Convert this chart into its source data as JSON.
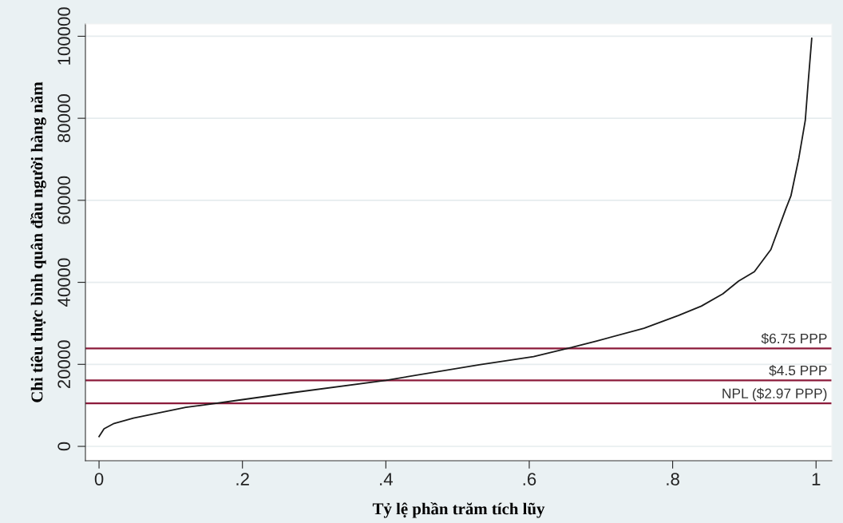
{
  "chart_data": {
    "type": "line",
    "xlabel": "Tỷ lệ phần trăm tích lũy",
    "ylabel": "Chi tiêu thực bình quân đầu người hàng năm",
    "series": [
      {
        "color": "#1a1a1a",
        "x": [
          0,
          0.007,
          0.021,
          0.048,
          0.121,
          0.188,
          0.27,
          0.4,
          0.53,
          0.606,
          0.659,
          0.694,
          0.76,
          0.808,
          0.84,
          0.87,
          0.892,
          0.914,
          0.937,
          0.958,
          0.965,
          0.976,
          0.985,
          0.989,
          0.994
        ],
        "values": [
          2400,
          4300,
          5600,
          6900,
          9500,
          11100,
          13100,
          16100,
          19900,
          21900,
          24100,
          25700,
          28800,
          31900,
          34200,
          37200,
          40300,
          42600,
          48000,
          58000,
          61100,
          70300,
          79500,
          88700,
          99500
        ]
      }
    ],
    "xlim": [
      -0.019,
      1.022
    ],
    "ylim": [
      -3500,
      103000
    ],
    "xticks": [
      0,
      {
        "value": 0.2,
        "label": ".2"
      },
      {
        "value": 0.4,
        "label": ".4"
      },
      {
        "value": 0.6,
        "label": ".6"
      },
      {
        "value": 0.8,
        "label": ".8"
      },
      1
    ],
    "yticks": [
      0,
      20000,
      40000,
      60000,
      80000,
      100000
    ],
    "grid": "y",
    "marker": "none",
    "line_style": "solid",
    "legend": false,
    "ref_lines": [
      {
        "axis": "y",
        "value": 23900,
        "label": "$6.75 PPP",
        "color": "#8b1a3a"
      },
      {
        "axis": "y",
        "value": 16100,
        "label": "$4.5 PPP",
        "color": "#8b1a3a"
      },
      {
        "axis": "y",
        "value": 10500,
        "label": "NPL ($2.97 PPP)",
        "color": "#8b1a3a"
      }
    ]
  }
}
